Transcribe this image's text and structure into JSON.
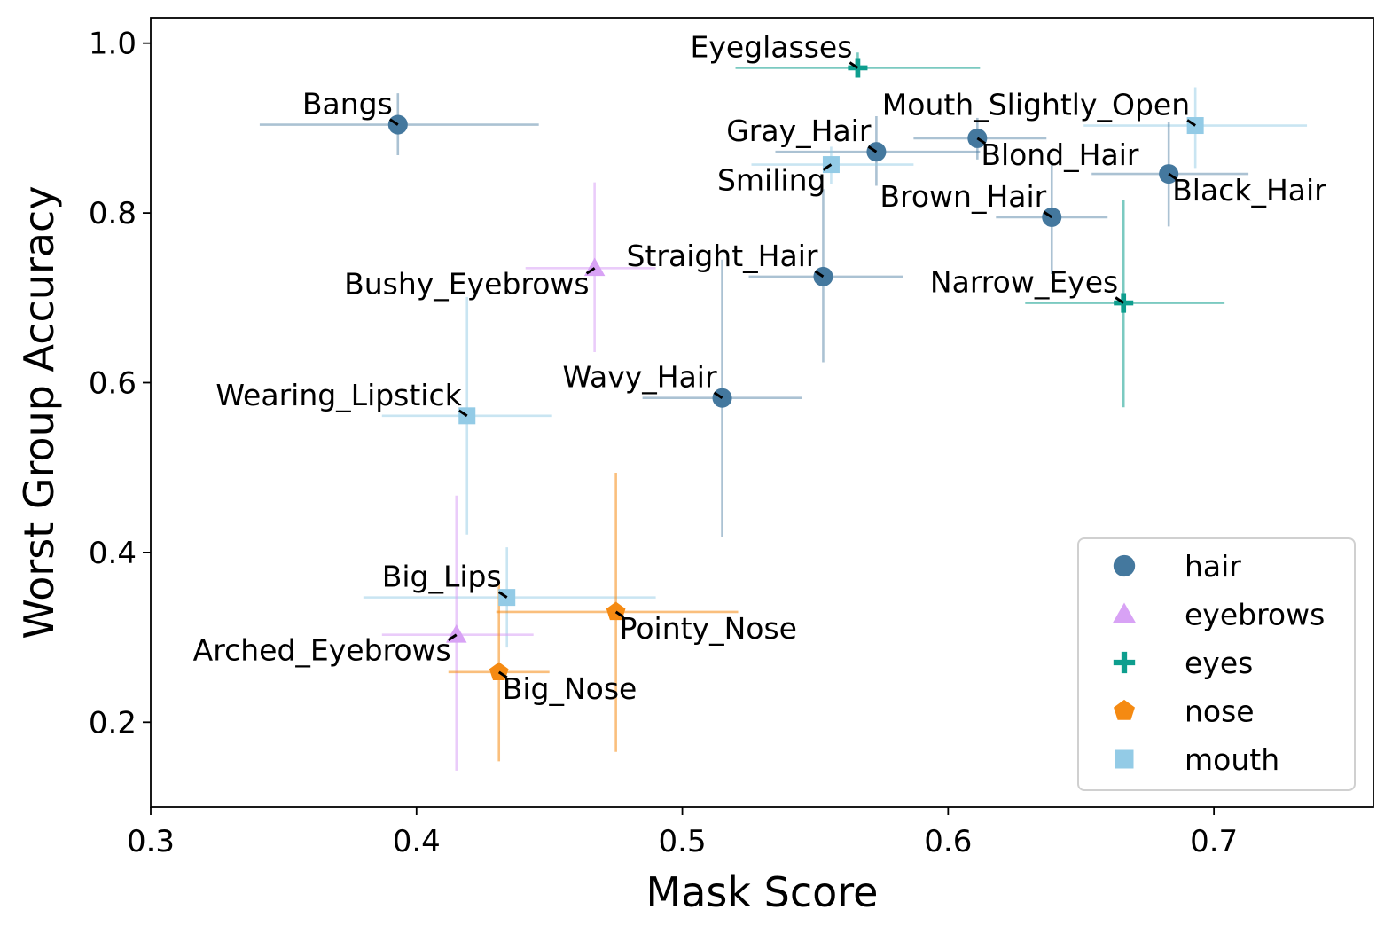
{
  "chart_data": {
    "type": "scatter",
    "title": "",
    "xlabel": "Mask Score",
    "ylabel": "Worst Group Accuracy",
    "xlim": [
      0.3,
      0.76
    ],
    "ylim": [
      0.1,
      1.03
    ],
    "xticks": [
      0.3,
      0.4,
      0.5,
      0.6,
      0.7
    ],
    "xtick_labels": [
      "0.3",
      "0.4",
      "0.5",
      "0.6",
      "0.7"
    ],
    "yticks": [
      0.2,
      0.4,
      0.6,
      0.8,
      1.0
    ],
    "ytick_labels": [
      "0.2",
      "0.4",
      "0.6",
      "0.8",
      "1.0"
    ],
    "grid": false,
    "legend_position": "bottom-right",
    "groups": [
      {
        "name": "hair",
        "label": "hair",
        "color": "#44789e",
        "marker": "circle",
        "error_alpha": 0.45
      },
      {
        "name": "eyebrows",
        "label": "eyebrows",
        "color": "#d8a2f5",
        "marker": "triangle",
        "error_alpha": 0.55
      },
      {
        "name": "eyes",
        "label": "eyes",
        "color": "#0e9e8e",
        "marker": "plus",
        "error_alpha": 0.55
      },
      {
        "name": "nose",
        "label": "nose",
        "color": "#f58a12",
        "marker": "pentagon",
        "error_alpha": 0.55
      },
      {
        "name": "mouth",
        "label": "mouth",
        "color": "#93cbe6",
        "marker": "square",
        "error_alpha": 0.5
      }
    ],
    "points": [
      {
        "label": "Bangs",
        "group": "hair",
        "x": 0.393,
        "y": 0.904,
        "xerr": [
          0.341,
          0.446
        ],
        "yerr": [
          0.868,
          0.941
        ],
        "label_pos": "upper-left"
      },
      {
        "label": "Eyeglasses",
        "group": "eyes",
        "x": 0.566,
        "y": 0.971,
        "xerr": [
          0.52,
          0.612
        ],
        "yerr": [
          0.961,
          0.989
        ],
        "label_pos": "upper-left"
      },
      {
        "label": "Mouth_Slightly_Open",
        "group": "mouth",
        "x": 0.693,
        "y": 0.903,
        "xerr": [
          0.651,
          0.735
        ],
        "yerr": [
          0.853,
          0.948
        ],
        "label_pos": "upper-left"
      },
      {
        "label": "Gray_Hair",
        "group": "hair",
        "x": 0.573,
        "y": 0.872,
        "xerr": [
          0.535,
          0.612
        ],
        "yerr": [
          0.832,
          0.914
        ],
        "label_pos": "upper-left"
      },
      {
        "label": "Blond_Hair",
        "group": "hair",
        "x": 0.611,
        "y": 0.888,
        "xerr": [
          0.587,
          0.637
        ],
        "yerr": [
          0.863,
          0.912
        ],
        "label_pos": "lower-right"
      },
      {
        "label": "Smiling",
        "group": "mouth",
        "x": 0.556,
        "y": 0.857,
        "xerr": [
          0.526,
          0.587
        ],
        "yerr": [
          0.834,
          0.878
        ],
        "label_pos": "lower-left"
      },
      {
        "label": "Black_Hair",
        "group": "hair",
        "x": 0.683,
        "y": 0.846,
        "xerr": [
          0.654,
          0.713
        ],
        "yerr": [
          0.784,
          0.907
        ],
        "label_pos": "lower-right"
      },
      {
        "label": "Brown_Hair",
        "group": "hair",
        "x": 0.639,
        "y": 0.795,
        "xerr": [
          0.618,
          0.66
        ],
        "yerr": [
          0.728,
          0.861
        ],
        "label_pos": "upper-left"
      },
      {
        "label": "Straight_Hair",
        "group": "hair",
        "x": 0.553,
        "y": 0.725,
        "xerr": [
          0.525,
          0.583
        ],
        "yerr": [
          0.624,
          0.828
        ],
        "label_pos": "upper-left"
      },
      {
        "label": "Bushy_Eyebrows",
        "group": "eyebrows",
        "x": 0.467,
        "y": 0.735,
        "xerr": [
          0.441,
          0.49
        ],
        "yerr": [
          0.636,
          0.836
        ],
        "label_pos": "lower-left"
      },
      {
        "label": "Narrow_Eyes",
        "group": "eyes",
        "x": 0.666,
        "y": 0.694,
        "xerr": [
          0.629,
          0.704
        ],
        "yerr": [
          0.571,
          0.815
        ],
        "label_pos": "upper-left"
      },
      {
        "label": "Wavy_Hair",
        "group": "hair",
        "x": 0.515,
        "y": 0.582,
        "xerr": [
          0.485,
          0.545
        ],
        "yerr": [
          0.418,
          0.745
        ],
        "label_pos": "upper-left"
      },
      {
        "label": "Wearing_Lipstick",
        "group": "mouth",
        "x": 0.419,
        "y": 0.561,
        "xerr": [
          0.387,
          0.451
        ],
        "yerr": [
          0.421,
          0.701
        ],
        "label_pos": "upper-left"
      },
      {
        "label": "Big_Lips",
        "group": "mouth",
        "x": 0.434,
        "y": 0.347,
        "xerr": [
          0.38,
          0.49
        ],
        "yerr": [
          0.288,
          0.406
        ],
        "label_pos": "upper-left"
      },
      {
        "label": "Pointy_Nose",
        "group": "nose",
        "x": 0.475,
        "y": 0.33,
        "xerr": [
          0.43,
          0.521
        ],
        "yerr": [
          0.165,
          0.494
        ],
        "label_pos": "lower-right"
      },
      {
        "label": "Arched_Eyebrows",
        "group": "eyebrows",
        "x": 0.415,
        "y": 0.303,
        "xerr": [
          0.387,
          0.444
        ],
        "yerr": [
          0.143,
          0.467
        ],
        "label_pos": "lower-left"
      },
      {
        "label": "Big_Nose",
        "group": "nose",
        "x": 0.431,
        "y": 0.259,
        "xerr": [
          0.412,
          0.45
        ],
        "yerr": [
          0.154,
          0.364
        ],
        "label_pos": "lower-right"
      }
    ]
  }
}
